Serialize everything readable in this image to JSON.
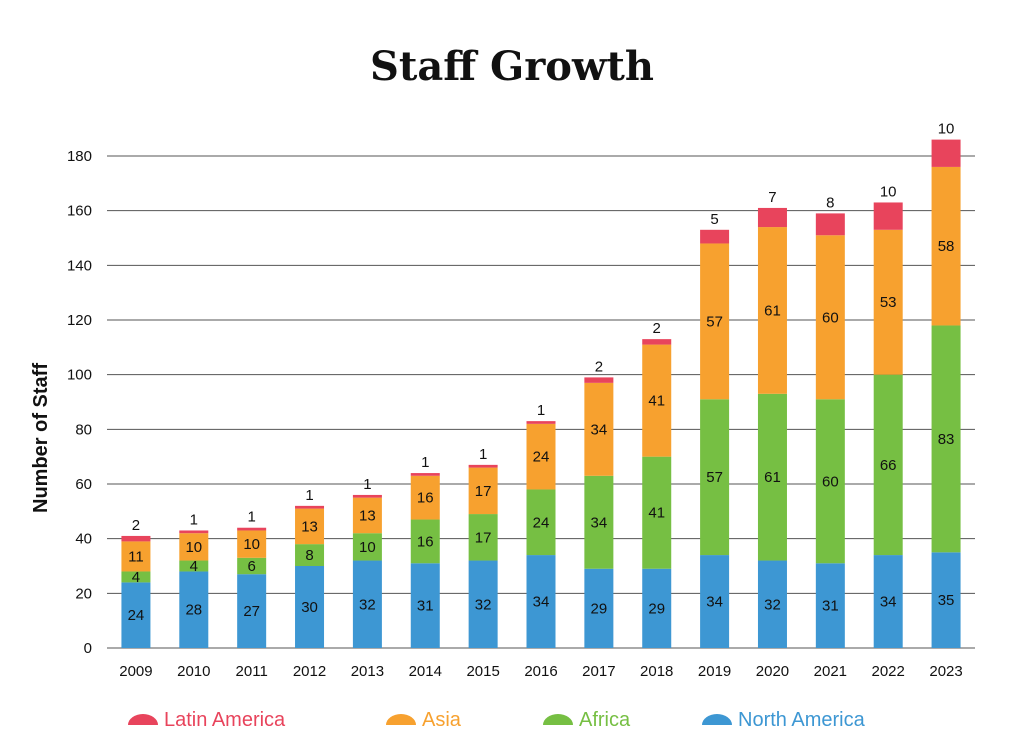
{
  "chart_data": {
    "type": "bar",
    "stacked": true,
    "title": "Staff Growth",
    "xlabel": "",
    "ylabel": "Number of Staff",
    "ylim": [
      0,
      180
    ],
    "yticks": [
      0,
      20,
      40,
      60,
      80,
      100,
      120,
      140,
      160,
      180
    ],
    "grid": true,
    "legend_position": "bottom",
    "categories": [
      "2009",
      "2010",
      "2011",
      "2012",
      "2013",
      "2014",
      "2015",
      "2016",
      "2017",
      "2018",
      "2019",
      "2020",
      "2021",
      "2022",
      "2023"
    ],
    "series": [
      {
        "name": "North America",
        "color": "#3d97d3",
        "values": [
          24,
          28,
          27,
          30,
          32,
          31,
          32,
          34,
          29,
          29,
          34,
          32,
          31,
          34,
          35
        ]
      },
      {
        "name": "Africa",
        "color": "#76bf43",
        "values": [
          4,
          4,
          6,
          8,
          10,
          16,
          17,
          24,
          34,
          41,
          57,
          61,
          60,
          66,
          83
        ]
      },
      {
        "name": "Asia",
        "color": "#f7a12f",
        "values": [
          11,
          10,
          10,
          13,
          13,
          16,
          17,
          24,
          34,
          41,
          57,
          61,
          60,
          53,
          58
        ]
      },
      {
        "name": "Latin America",
        "color": "#e8445c",
        "values": [
          2,
          1,
          1,
          1,
          1,
          1,
          1,
          1,
          2,
          2,
          5,
          7,
          8,
          10,
          10
        ]
      }
    ],
    "legend_order": [
      "Latin America",
      "Asia",
      "Africa",
      "North America"
    ]
  }
}
